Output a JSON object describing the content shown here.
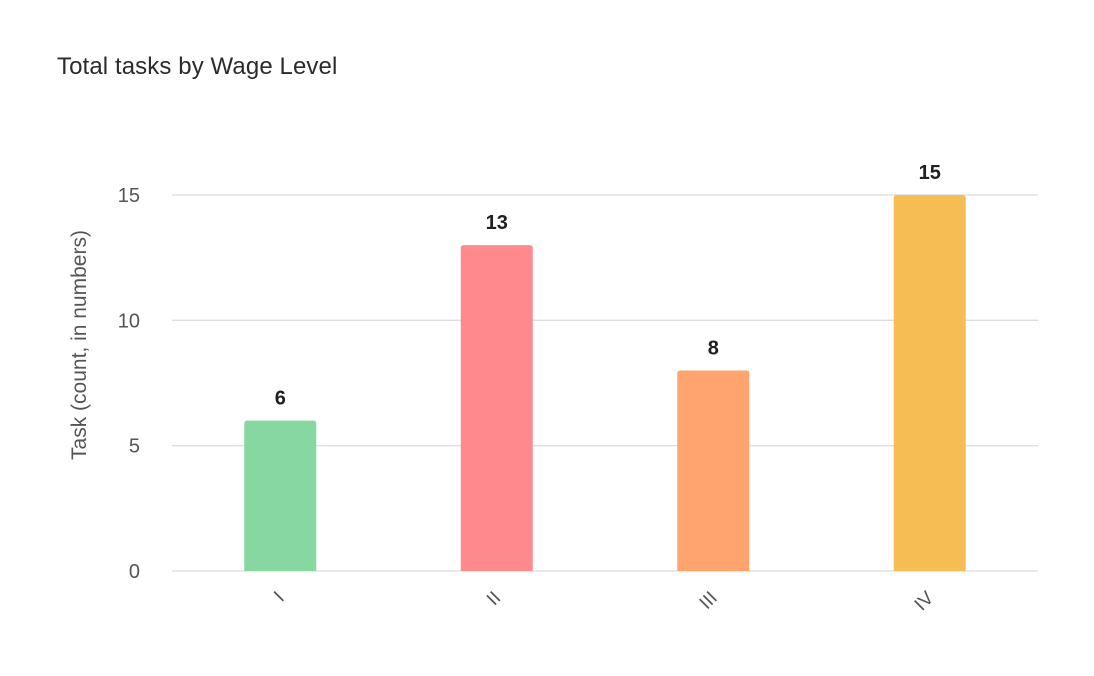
{
  "chart_data": {
    "type": "bar",
    "title": "Total tasks by Wage Level",
    "xlabel": "",
    "ylabel": "Task (count, in numbers)",
    "categories": [
      "I",
      "II",
      "III",
      "IV"
    ],
    "values": [
      6,
      13,
      8,
      15
    ],
    "colors": [
      "#86d8a0",
      "#ff8a8e",
      "#ffa46e",
      "#f7bd55"
    ],
    "ylim": [
      0,
      15
    ],
    "yticks": [
      "0",
      "5",
      "10",
      "15"
    ],
    "grid": true,
    "data_labels": true
  }
}
